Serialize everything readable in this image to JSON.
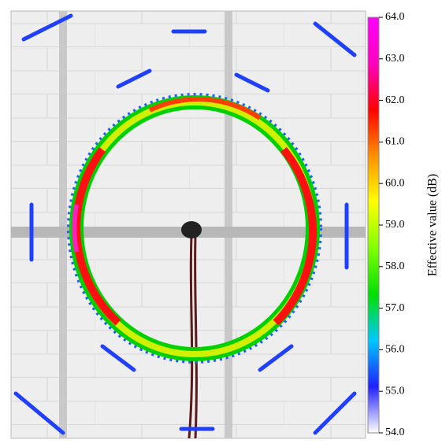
{
  "chart_data": {
    "type": "heatmap",
    "colorbar_label": "Effective value (dB)",
    "clim": [
      54,
      64
    ],
    "colormap": [
      "#ffffff",
      "#2020ff",
      "#00c8ff",
      "#00e000",
      "#80ff00",
      "#ffff00",
      "#ff9000",
      "#ff0000",
      "#ff00c0",
      "#ff00ff"
    ],
    "cticks": [
      {
        "value": 54,
        "label": "54.0"
      },
      {
        "value": 55,
        "label": "55.0"
      },
      {
        "value": 56,
        "label": "56.0"
      },
      {
        "value": 57,
        "label": "57.0"
      },
      {
        "value": 58,
        "label": "58.0"
      },
      {
        "value": 59,
        "label": "59.0"
      },
      {
        "value": 60,
        "label": "60.0"
      },
      {
        "value": 61,
        "label": "61.0"
      },
      {
        "value": 62,
        "label": "62.0"
      },
      {
        "value": 63,
        "label": "63.0"
      },
      {
        "value": 64,
        "label": "64.0"
      }
    ]
  }
}
